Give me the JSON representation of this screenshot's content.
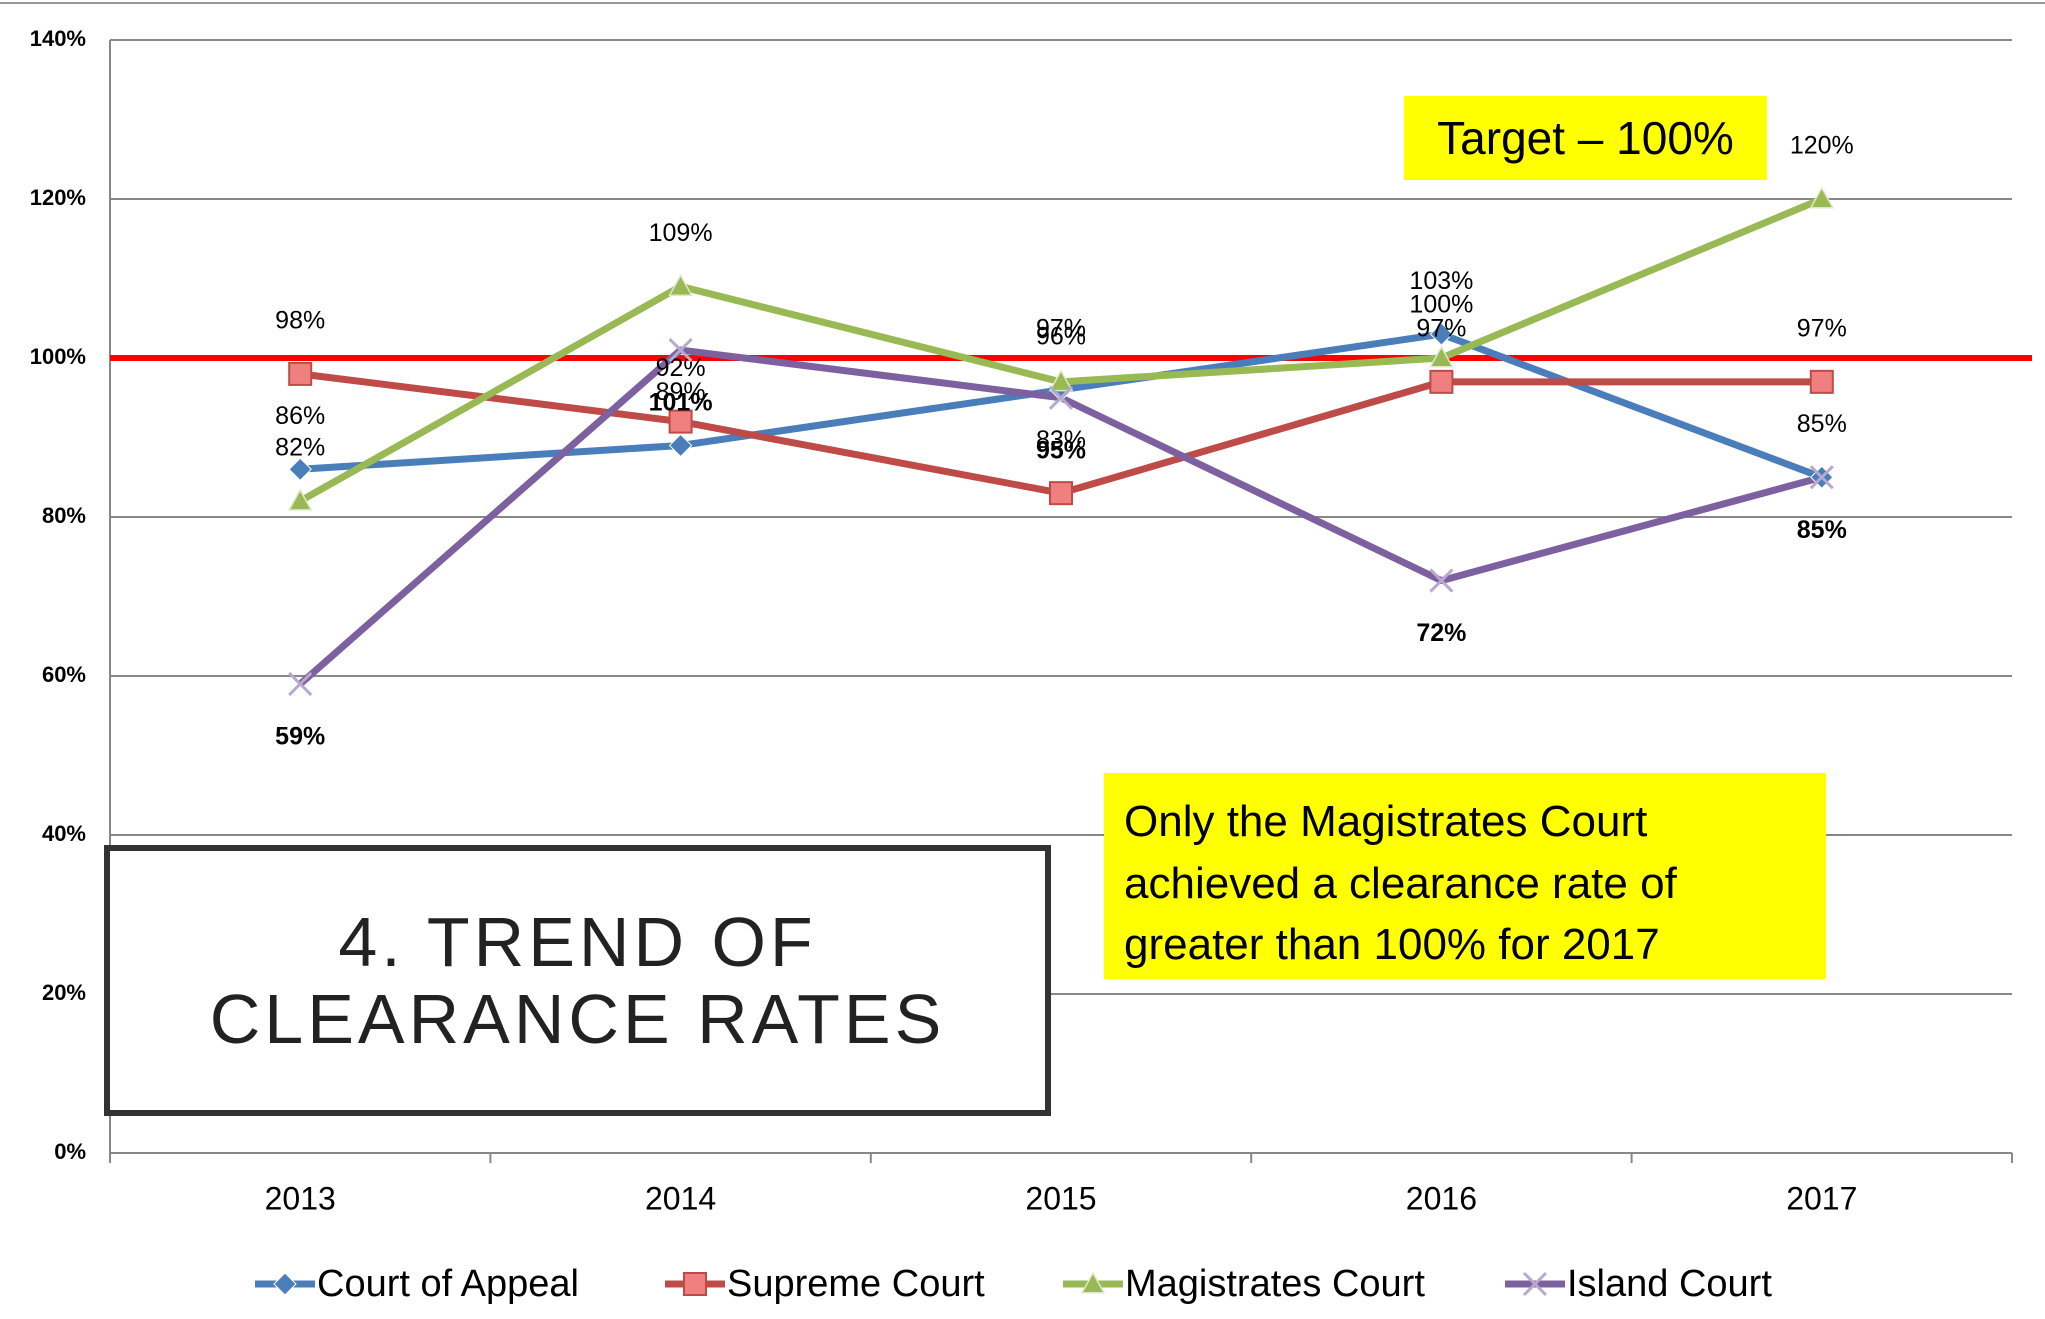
{
  "chart_data": {
    "type": "line",
    "title": "4. TREND OF CLEARANCE RATES",
    "categories": [
      "2013",
      "2014",
      "2015",
      "2016",
      "2017"
    ],
    "series": [
      {
        "name": "Court of Appeal",
        "color": "#4a7ebb",
        "marker": "diamond",
        "values": [
          86,
          89,
          96,
          103,
          85
        ],
        "value_labels": [
          "86%",
          "89%",
          "96%",
          "103%",
          "85%"
        ]
      },
      {
        "name": "Supreme Court",
        "color": "#be4b48",
        "marker": "square",
        "values": [
          98,
          92,
          83,
          97,
          97
        ],
        "value_labels": [
          "98%",
          "92%",
          "83%",
          "97%",
          "97%"
        ]
      },
      {
        "name": "Magistrates Court",
        "color": "#98b954",
        "marker": "triangle",
        "values": [
          82,
          109,
          97,
          100,
          120
        ],
        "value_labels": [
          "82%",
          "109%",
          "97%",
          "100%",
          "120%"
        ]
      },
      {
        "name": "Island Court",
        "color": "#7d60a0",
        "marker": "x",
        "values": [
          59,
          101,
          95,
          72,
          85
        ],
        "value_labels": [
          "59%",
          "101%",
          "95%",
          "72%",
          "85%"
        ]
      }
    ],
    "ylim": [
      0,
      140
    ],
    "yticks": [
      {
        "value": 0,
        "label": "0%"
      },
      {
        "value": 20,
        "label": "20%"
      },
      {
        "value": 40,
        "label": "40%"
      },
      {
        "value": 60,
        "label": "60%"
      },
      {
        "value": 80,
        "label": "80%"
      },
      {
        "value": 100,
        "label": "100%"
      },
      {
        "value": 120,
        "label": "120%"
      },
      {
        "value": 140,
        "label": "140%"
      }
    ],
    "grid": true,
    "legend": "bottom",
    "target": 100,
    "target_color": "#ff0000",
    "annotations": [
      "Target – 100%",
      "Only the Magistrates Court achieved a clearance rate of greater than 100% for 2017"
    ]
  }
}
